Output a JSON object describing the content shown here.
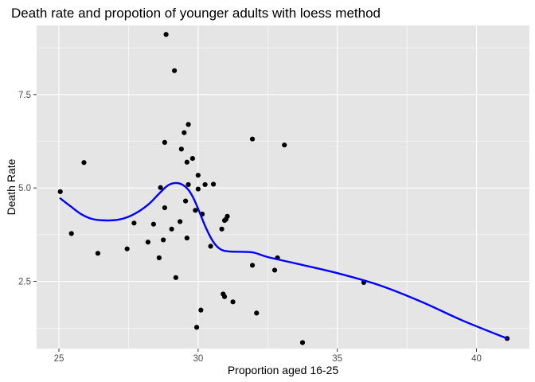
{
  "chart_data": {
    "type": "scatter",
    "title": "Death rate and propotion of younger adults with loess method",
    "xlabel": "Proportion aged 16-25",
    "ylabel": "Death Rate",
    "xlim": [
      24.2,
      41.9
    ],
    "ylim": [
      0.7,
      9.35
    ],
    "x_ticks": [
      25,
      30,
      35,
      40
    ],
    "y_ticks": [
      2.5,
      5.0,
      7.5
    ],
    "x_tick_labels": [
      "25",
      "30",
      "35",
      "40"
    ],
    "y_tick_labels": [
      "2.5",
      "5.0",
      "7.5"
    ],
    "grid": true,
    "legend": "none",
    "points": [
      {
        "x": 25.05,
        "y": 4.9
      },
      {
        "x": 25.45,
        "y": 3.78
      },
      {
        "x": 25.9,
        "y": 5.68
      },
      {
        "x": 26.4,
        "y": 3.25
      },
      {
        "x": 27.45,
        "y": 3.37
      },
      {
        "x": 27.7,
        "y": 4.06
      },
      {
        "x": 28.2,
        "y": 3.55
      },
      {
        "x": 28.4,
        "y": 4.03
      },
      {
        "x": 28.6,
        "y": 3.13
      },
      {
        "x": 28.65,
        "y": 5.01
      },
      {
        "x": 28.75,
        "y": 3.61
      },
      {
        "x": 28.8,
        "y": 4.47
      },
      {
        "x": 28.8,
        "y": 6.22
      },
      {
        "x": 28.85,
        "y": 9.11
      },
      {
        "x": 29.05,
        "y": 3.9
      },
      {
        "x": 29.15,
        "y": 8.14
      },
      {
        "x": 29.2,
        "y": 2.6
      },
      {
        "x": 29.35,
        "y": 4.1
      },
      {
        "x": 29.4,
        "y": 6.04
      },
      {
        "x": 29.5,
        "y": 6.48
      },
      {
        "x": 29.55,
        "y": 4.65
      },
      {
        "x": 29.6,
        "y": 3.66
      },
      {
        "x": 29.6,
        "y": 5.69
      },
      {
        "x": 29.65,
        "y": 6.7
      },
      {
        "x": 29.65,
        "y": 5.09
      },
      {
        "x": 29.8,
        "y": 5.79
      },
      {
        "x": 29.9,
        "y": 4.4
      },
      {
        "x": 29.95,
        "y": 1.27
      },
      {
        "x": 30.0,
        "y": 5.34
      },
      {
        "x": 30.0,
        "y": 4.97
      },
      {
        "x": 30.1,
        "y": 1.73
      },
      {
        "x": 30.15,
        "y": 4.3
      },
      {
        "x": 30.25,
        "y": 5.09
      },
      {
        "x": 30.45,
        "y": 3.44
      },
      {
        "x": 30.55,
        "y": 5.1
      },
      {
        "x": 30.85,
        "y": 3.9
      },
      {
        "x": 30.9,
        "y": 2.16
      },
      {
        "x": 30.95,
        "y": 2.09
      },
      {
        "x": 30.95,
        "y": 4.13
      },
      {
        "x": 31.0,
        "y": 4.16
      },
      {
        "x": 31.05,
        "y": 4.24
      },
      {
        "x": 31.25,
        "y": 1.95
      },
      {
        "x": 31.95,
        "y": 2.93
      },
      {
        "x": 31.95,
        "y": 6.31
      },
      {
        "x": 32.1,
        "y": 1.65
      },
      {
        "x": 32.75,
        "y": 2.8
      },
      {
        "x": 32.85,
        "y": 3.13
      },
      {
        "x": 33.1,
        "y": 6.15
      },
      {
        "x": 33.75,
        "y": 0.86
      },
      {
        "x": 35.95,
        "y": 2.47
      },
      {
        "x": 41.1,
        "y": 0.97
      }
    ],
    "loess_line": {
      "color": "#0000ff",
      "points": [
        {
          "x": 25.05,
          "y": 4.72
        },
        {
          "x": 25.4,
          "y": 4.52
        },
        {
          "x": 25.8,
          "y": 4.3
        },
        {
          "x": 26.2,
          "y": 4.17
        },
        {
          "x": 26.7,
          "y": 4.13
        },
        {
          "x": 27.2,
          "y": 4.16
        },
        {
          "x": 27.7,
          "y": 4.3
        },
        {
          "x": 28.2,
          "y": 4.55
        },
        {
          "x": 28.6,
          "y": 4.85
        },
        {
          "x": 28.9,
          "y": 5.06
        },
        {
          "x": 29.15,
          "y": 5.13
        },
        {
          "x": 29.4,
          "y": 5.1
        },
        {
          "x": 29.65,
          "y": 4.95
        },
        {
          "x": 29.85,
          "y": 4.7
        },
        {
          "x": 30.05,
          "y": 4.35
        },
        {
          "x": 30.3,
          "y": 3.9
        },
        {
          "x": 30.55,
          "y": 3.55
        },
        {
          "x": 30.8,
          "y": 3.36
        },
        {
          "x": 31.1,
          "y": 3.3
        },
        {
          "x": 31.6,
          "y": 3.29
        },
        {
          "x": 32.0,
          "y": 3.27
        },
        {
          "x": 32.5,
          "y": 3.15
        },
        {
          "x": 33.5,
          "y": 2.98
        },
        {
          "x": 35.0,
          "y": 2.72
        },
        {
          "x": 36.5,
          "y": 2.4
        },
        {
          "x": 38.0,
          "y": 1.96
        },
        {
          "x": 39.5,
          "y": 1.45
        },
        {
          "x": 41.1,
          "y": 0.97
        }
      ]
    },
    "colors": {
      "panel_background": "#e5e5e5",
      "grid_major": "#ffffff",
      "points": "#000000",
      "line": "#0000ff"
    }
  }
}
